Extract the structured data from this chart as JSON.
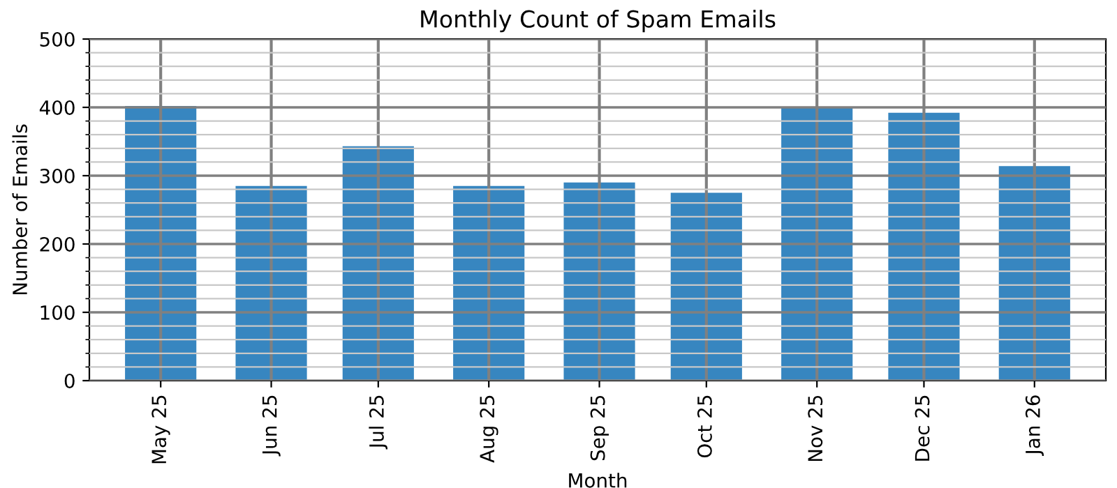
{
  "chart_data": {
    "type": "bar",
    "title": "Monthly Count of Spam Emails",
    "xlabel": "Month",
    "ylabel": "Number of Emails",
    "x": [
      "2025-05",
      "2025-06",
      "2025-07",
      "2025-08",
      "2025-09",
      "2025-10",
      "2025-11",
      "2025-12",
      "2026-01"
    ],
    "values": [
      402,
      285,
      343,
      285,
      290,
      275,
      400,
      392,
      314
    ],
    "color": "#3384bf",
    "xlim": [
      "2025-04-11",
      "2026-01-21"
    ],
    "xticks": [
      {
        "value": "2025-05",
        "label": "May 25"
      },
      {
        "value": "2025-06",
        "label": "Jun 25"
      },
      {
        "value": "2025-07",
        "label": "Jul 25"
      },
      {
        "value": "2025-08",
        "label": "Aug 25"
      },
      {
        "value": "2025-09",
        "label": "Sep 25"
      },
      {
        "value": "2025-10",
        "label": "Oct 25"
      },
      {
        "value": "2025-11",
        "label": "Nov 25"
      },
      {
        "value": "2025-12",
        "label": "Dec 25"
      },
      {
        "value": "2026-01",
        "label": "Jan 26"
      }
    ],
    "ylim": [
      0,
      500
    ],
    "yticks": [
      0,
      {
        "value": 20,
        "label": null
      },
      {
        "value": 40,
        "label": null
      },
      {
        "value": 60,
        "label": null
      },
      {
        "value": 80,
        "label": null
      },
      100,
      {
        "value": 120,
        "label": null
      },
      {
        "value": 140,
        "label": null
      },
      {
        "value": 160,
        "label": null
      },
      {
        "value": 180,
        "label": null
      },
      200,
      {
        "value": 220,
        "label": null
      },
      {
        "value": 240,
        "label": null
      },
      {
        "value": 260,
        "label": null
      },
      {
        "value": 280,
        "label": null
      },
      300,
      {
        "value": 320,
        "label": null
      },
      {
        "value": 340,
        "label": null
      },
      {
        "value": 360,
        "label": null
      },
      {
        "value": 380,
        "label": null
      },
      400,
      {
        "value": 420,
        "label": null
      },
      {
        "value": 440,
        "label": null
      },
      {
        "value": 460,
        "label": null
      },
      {
        "value": 480,
        "label": null
      },
      500
    ],
    "grid": true
  }
}
